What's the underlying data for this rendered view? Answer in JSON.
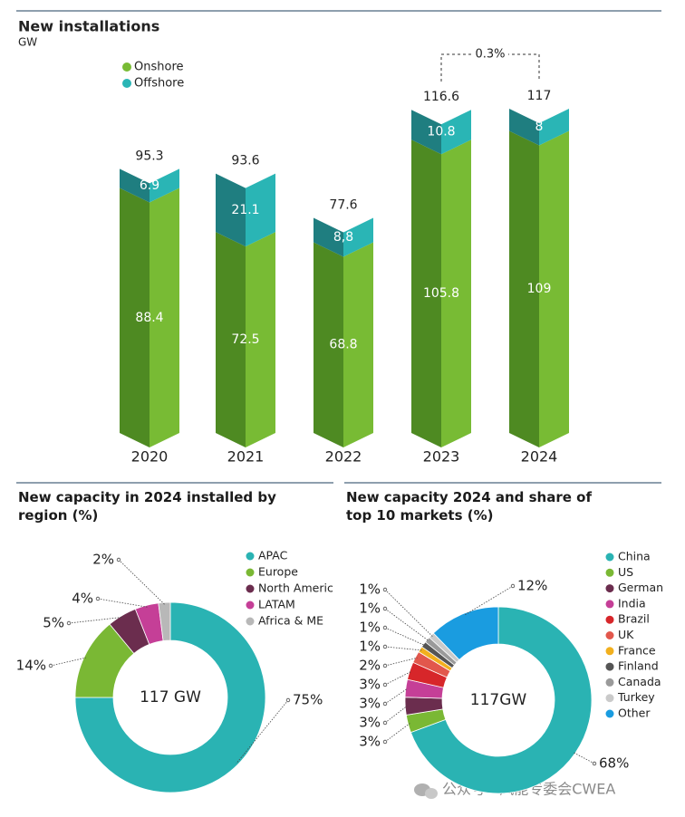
{
  "chart_data": [
    {
      "type": "bar",
      "stacked": true,
      "style": "3d",
      "title": "New installations",
      "subtitle": "GW",
      "categories": [
        "2020",
        "2021",
        "2022",
        "2023",
        "2024"
      ],
      "series": [
        {
          "name": "Onshore",
          "color": "#78bb34",
          "shade": "#4e8a22",
          "values": [
            88.4,
            72.5,
            68.8,
            105.8,
            109
          ]
        },
        {
          "name": "Offshore",
          "color": "#2ab5b5",
          "shade": "#1f7e80",
          "values": [
            6.9,
            21.1,
            8.8,
            10.8,
            8
          ],
          "value_labels": [
            "6.9",
            "21.1",
            "8,8",
            "10.8",
            "8"
          ]
        }
      ],
      "totals": [
        95.3,
        93.6,
        77.6,
        116.6,
        117
      ],
      "annotation": "0.3%",
      "legend": "top-left"
    },
    {
      "type": "donut",
      "title": "New capacity in 2024 installed by region (%)",
      "center_label": "117 GW",
      "categories": [
        "APAC",
        "Europe",
        "North Americ",
        "LATAM",
        "Africa & ME"
      ],
      "values": [
        75,
        14,
        5,
        4,
        2
      ],
      "value_labels": [
        "75%",
        "14%",
        "5%",
        "4%",
        "2%"
      ],
      "colors": [
        "#2ab3b3",
        "#7ab834",
        "#6b2d4e",
        "#c53f97",
        "#b8b8b8"
      ],
      "legend": "right"
    },
    {
      "type": "donut",
      "title": "New capacity 2024 and share of top 10 markets (%)",
      "center_label": "117GW",
      "categories": [
        "China",
        "US",
        "German",
        "India",
        "Brazil",
        "UK",
        "France",
        "Finland",
        "Canada",
        "Turkey",
        "Other"
      ],
      "values": [
        68,
        3,
        3,
        3,
        3,
        2,
        1,
        1,
        1,
        1,
        12
      ],
      "value_labels": [
        "68%",
        "3%",
        "3%",
        "3%",
        "3%",
        "2%",
        "1%",
        "1%",
        "1%",
        "1%",
        "12%"
      ],
      "colors": [
        "#2ab3b3",
        "#7ab834",
        "#6b2d4e",
        "#c53f97",
        "#d7262a",
        "#e2574c",
        "#f2b01e",
        "#555555",
        "#9a9a9a",
        "#cacaca",
        "#1a9ce0"
      ],
      "legend": "right"
    }
  ],
  "watermark": "公众号 · 风能专委会CWEA"
}
